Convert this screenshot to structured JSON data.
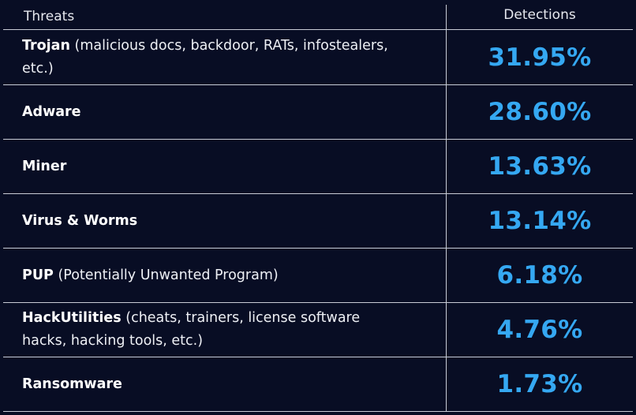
{
  "header": {
    "threats_label": "Threats",
    "detections_label": "Detections"
  },
  "rows": [
    {
      "name": "Trojan",
      "desc": " (malicious docs, backdoor, RATs, infostealers, etc.)",
      "value": "31.95%"
    },
    {
      "name": "Adware",
      "desc": "",
      "value": "28.60%"
    },
    {
      "name": "Miner",
      "desc": "",
      "value": "13.63%"
    },
    {
      "name": "Virus & Worms",
      "desc": "",
      "value": "13.14%"
    },
    {
      "name": "PUP",
      "desc": " (Potentially Unwanted Program)",
      "value": "6.18%"
    },
    {
      "name": "HackUtilities",
      "desc": " (cheats, trainers, license software hacks, hacking tools, etc.)",
      "value": "4.76%"
    },
    {
      "name": "Ransomware",
      "desc": "",
      "value": "1.73%"
    }
  ],
  "colors": {
    "background": "#080d24",
    "value_accent": "#35a8f2",
    "grid_line": "#c9ccd6"
  }
}
